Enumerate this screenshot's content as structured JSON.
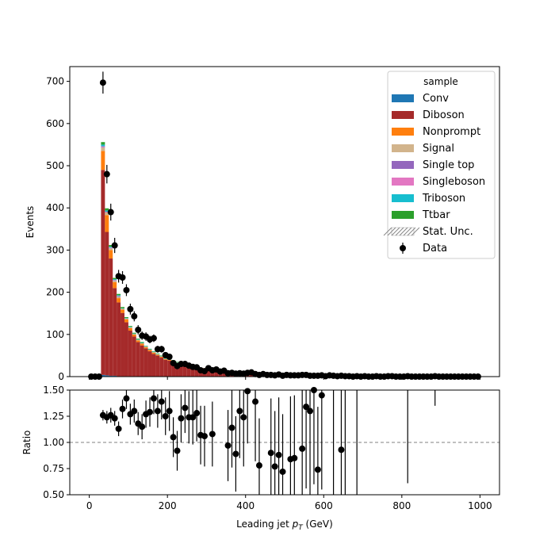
{
  "chart_data": [
    {
      "type": "bar",
      "stacked": true,
      "ylabel": "Events",
      "ylim": [
        0,
        735
      ],
      "xlim": [
        -50,
        1050
      ],
      "yticks": [
        0,
        100,
        200,
        300,
        400,
        500,
        600,
        700
      ],
      "ytick_labels": [
        "0",
        "100",
        "200",
        "300",
        "400",
        "500",
        "600",
        "700"
      ],
      "legend": {
        "title": "sample",
        "placement": "top-right",
        "entries": [
          "Conv",
          "Diboson",
          "Nonprompt",
          "Signal",
          "Single top",
          "Singleboson",
          "Triboson",
          "Ttbar",
          "Stat. Unc.",
          "Data"
        ]
      },
      "bin_edges_start": 30,
      "bin_width": 10,
      "series": [
        {
          "name": "Conv",
          "color": "#1f77b4",
          "values": [
            4,
            3,
            2,
            2,
            1,
            1,
            1,
            1,
            1,
            0,
            0,
            0,
            0,
            0,
            0,
            0
          ]
        },
        {
          "name": "Diboson",
          "color": "#a52a2a",
          "values": [
            486,
            340,
            278,
            208,
            175,
            150,
            128,
            108,
            94,
            82,
            74,
            67,
            60,
            54,
            50,
            45,
            40,
            38,
            35,
            32,
            30,
            28,
            26,
            24,
            22,
            20,
            19,
            18,
            17,
            16,
            15,
            14,
            13,
            12,
            12,
            11,
            10,
            10,
            9,
            9,
            8,
            8,
            7,
            7,
            7,
            6,
            6,
            6,
            5,
            5,
            5,
            5,
            4,
            4,
            4,
            4,
            4,
            3,
            3,
            3,
            3,
            3,
            3,
            3,
            3,
            2,
            2,
            2,
            2,
            2,
            2,
            2,
            2,
            2,
            2,
            2,
            2,
            2,
            2,
            2,
            2,
            2,
            1,
            1,
            1,
            1,
            1,
            1,
            1,
            1,
            1,
            1,
            1,
            1,
            1,
            1,
            1
          ]
        },
        {
          "name": "Nonprompt",
          "color": "#ff7f0e",
          "values": [
            45,
            40,
            20,
            14,
            10,
            8,
            7,
            6,
            5,
            4,
            4,
            3,
            3,
            3,
            2,
            2,
            2,
            2,
            2,
            1,
            1,
            1,
            1,
            1,
            1,
            1,
            1,
            1,
            1,
            1
          ]
        },
        {
          "name": "Signal",
          "color": "#d2b48c",
          "values": [
            8,
            6,
            4,
            3,
            3,
            2,
            2,
            2,
            1,
            1,
            1,
            1,
            1,
            1,
            1,
            1
          ]
        },
        {
          "name": "Single top",
          "color": "#9467bd",
          "values": [
            1,
            1,
            1,
            1,
            1,
            0,
            0,
            0,
            0,
            0
          ]
        },
        {
          "name": "Singleboson",
          "color": "#e377c2",
          "values": [
            2,
            1,
            1,
            1,
            1,
            0,
            0,
            0,
            0,
            0
          ]
        },
        {
          "name": "Triboson",
          "color": "#17becf",
          "values": [
            4,
            3,
            2,
            2,
            2,
            1,
            1,
            1,
            1,
            1,
            1,
            1,
            1,
            1,
            1,
            1,
            1,
            1,
            1,
            1
          ]
        },
        {
          "name": "Ttbar",
          "color": "#2ca02c",
          "values": [
            6,
            5,
            4,
            3,
            3,
            3,
            2,
            2,
            2,
            2,
            2,
            1,
            1,
            1,
            1,
            1,
            1,
            1,
            1,
            1
          ]
        }
      ],
      "data_points": [
        {
          "x": 5,
          "y": 0,
          "err": 0
        },
        {
          "x": 15,
          "y": 0,
          "err": 0
        },
        {
          "x": 25,
          "y": 0,
          "err": 0
        },
        {
          "x": 35,
          "y": 697,
          "err": 26
        },
        {
          "x": 45,
          "y": 480,
          "err": 22
        },
        {
          "x": 55,
          "y": 390,
          "err": 20
        },
        {
          "x": 65,
          "y": 311,
          "err": 18
        },
        {
          "x": 75,
          "y": 238,
          "err": 15
        },
        {
          "x": 85,
          "y": 235,
          "err": 15
        },
        {
          "x": 95,
          "y": 205,
          "err": 14
        },
        {
          "x": 105,
          "y": 160,
          "err": 13
        },
        {
          "x": 115,
          "y": 143,
          "err": 12
        },
        {
          "x": 125,
          "y": 111,
          "err": 11
        },
        {
          "x": 135,
          "y": 97,
          "err": 10
        },
        {
          "x": 145,
          "y": 95,
          "err": 10
        },
        {
          "x": 155,
          "y": 88,
          "err": 9
        },
        {
          "x": 165,
          "y": 91,
          "err": 9
        },
        {
          "x": 175,
          "y": 65,
          "err": 8
        },
        {
          "x": 185,
          "y": 65,
          "err": 8
        },
        {
          "x": 195,
          "y": 51,
          "err": 7
        },
        {
          "x": 205,
          "y": 47,
          "err": 7
        },
        {
          "x": 215,
          "y": 32,
          "err": 6
        },
        {
          "x": 225,
          "y": 25,
          "err": 5
        },
        {
          "x": 235,
          "y": 30,
          "err": 5
        },
        {
          "x": 245,
          "y": 30,
          "err": 5
        },
        {
          "x": 255,
          "y": 26,
          "err": 5
        },
        {
          "x": 265,
          "y": 23,
          "err": 5
        },
        {
          "x": 275,
          "y": 22,
          "err": 5
        },
        {
          "x": 285,
          "y": 15,
          "err": 4
        },
        {
          "x": 295,
          "y": 13,
          "err": 4
        },
        {
          "x": 305,
          "y": 20,
          "err": 4
        },
        {
          "x": 315,
          "y": 15,
          "err": 4
        },
        {
          "x": 325,
          "y": 17,
          "err": 4
        },
        {
          "x": 335,
          "y": 12,
          "err": 3
        },
        {
          "x": 345,
          "y": 14,
          "err": 4
        },
        {
          "x": 355,
          "y": 8,
          "err": 3
        },
        {
          "x": 365,
          "y": 9,
          "err": 3
        },
        {
          "x": 375,
          "y": 7,
          "err": 3
        },
        {
          "x": 385,
          "y": 8,
          "err": 3
        },
        {
          "x": 395,
          "y": 7,
          "err": 3
        },
        {
          "x": 405,
          "y": 9,
          "err": 3
        },
        {
          "x": 415,
          "y": 10,
          "err": 3
        },
        {
          "x": 425,
          "y": 6,
          "err": 2
        },
        {
          "x": 435,
          "y": 4,
          "err": 2
        },
        {
          "x": 445,
          "y": 6,
          "err": 2
        },
        {
          "x": 455,
          "y": 4,
          "err": 2
        },
        {
          "x": 465,
          "y": 4,
          "err": 2
        },
        {
          "x": 475,
          "y": 3,
          "err": 2
        },
        {
          "x": 485,
          "y": 5,
          "err": 2
        },
        {
          "x": 495,
          "y": 2,
          "err": 1
        },
        {
          "x": 505,
          "y": 4,
          "err": 2
        },
        {
          "x": 515,
          "y": 3,
          "err": 2
        },
        {
          "x": 525,
          "y": 3,
          "err": 2
        },
        {
          "x": 535,
          "y": 3,
          "err": 2
        },
        {
          "x": 545,
          "y": 4,
          "err": 2
        },
        {
          "x": 555,
          "y": 4,
          "err": 2
        },
        {
          "x": 565,
          "y": 2,
          "err": 1
        },
        {
          "x": 575,
          "y": 2,
          "err": 1
        },
        {
          "x": 585,
          "y": 2,
          "err": 1
        },
        {
          "x": 595,
          "y": 3,
          "err": 2
        },
        {
          "x": 605,
          "y": 1,
          "err": 1
        },
        {
          "x": 615,
          "y": 3,
          "err": 2
        },
        {
          "x": 625,
          "y": 2,
          "err": 1
        },
        {
          "x": 635,
          "y": 1,
          "err": 1
        },
        {
          "x": 645,
          "y": 2,
          "err": 1
        },
        {
          "x": 655,
          "y": 1,
          "err": 1
        },
        {
          "x": 665,
          "y": 1,
          "err": 1
        },
        {
          "x": 675,
          "y": 0,
          "err": 0
        },
        {
          "x": 685,
          "y": 1,
          "err": 1
        },
        {
          "x": 695,
          "y": 0,
          "err": 0
        },
        {
          "x": 705,
          "y": 1,
          "err": 1
        },
        {
          "x": 715,
          "y": 0,
          "err": 0
        },
        {
          "x": 725,
          "y": 0,
          "err": 0
        },
        {
          "x": 735,
          "y": 1,
          "err": 1
        },
        {
          "x": 745,
          "y": 0,
          "err": 0
        },
        {
          "x": 755,
          "y": 0,
          "err": 0
        },
        {
          "x": 765,
          "y": 1,
          "err": 1
        },
        {
          "x": 775,
          "y": 1,
          "err": 1
        },
        {
          "x": 785,
          "y": 0,
          "err": 0
        },
        {
          "x": 795,
          "y": 0,
          "err": 0
        },
        {
          "x": 805,
          "y": 0,
          "err": 0
        },
        {
          "x": 815,
          "y": 1,
          "err": 1
        },
        {
          "x": 825,
          "y": 0,
          "err": 0
        },
        {
          "x": 835,
          "y": 0,
          "err": 0
        },
        {
          "x": 845,
          "y": 0,
          "err": 0
        },
        {
          "x": 855,
          "y": 0,
          "err": 0
        },
        {
          "x": 865,
          "y": 0,
          "err": 0
        },
        {
          "x": 875,
          "y": 0,
          "err": 0
        },
        {
          "x": 885,
          "y": 1,
          "err": 1
        },
        {
          "x": 895,
          "y": 0,
          "err": 0
        },
        {
          "x": 905,
          "y": 0,
          "err": 0
        },
        {
          "x": 915,
          "y": 0,
          "err": 0
        },
        {
          "x": 925,
          "y": 0,
          "err": 0
        },
        {
          "x": 935,
          "y": 0,
          "err": 0
        },
        {
          "x": 945,
          "y": 0,
          "err": 0
        },
        {
          "x": 955,
          "y": 0,
          "err": 0
        },
        {
          "x": 965,
          "y": 0,
          "err": 0
        },
        {
          "x": 975,
          "y": 0,
          "err": 0
        },
        {
          "x": 985,
          "y": 0,
          "err": 0
        },
        {
          "x": 995,
          "y": 0,
          "err": 0
        }
      ]
    },
    {
      "type": "scatter",
      "ylabel": "Ratio",
      "xlabel": "Leading jet  pT (GeV)",
      "ylim": [
        0.5,
        1.5
      ],
      "xlim": [
        -50,
        1050
      ],
      "yticks": [
        0.5,
        0.75,
        1.0,
        1.25,
        1.5
      ],
      "ytick_labels": [
        "0.50",
        "0.75",
        "1.00",
        "1.25",
        "1.50"
      ],
      "xticks": [
        0,
        200,
        400,
        600,
        800,
        1000
      ],
      "xtick_labels": [
        "0",
        "200",
        "400",
        "600",
        "800",
        "1000"
      ],
      "reference_line": 1.0,
      "points": [
        {
          "x": 35,
          "y": 1.26,
          "err": 0.05
        },
        {
          "x": 45,
          "y": 1.24,
          "err": 0.06
        },
        {
          "x": 55,
          "y": 1.26,
          "err": 0.07
        },
        {
          "x": 65,
          "y": 1.23,
          "err": 0.07
        },
        {
          "x": 75,
          "y": 1.13,
          "err": 0.07
        },
        {
          "x": 85,
          "y": 1.32,
          "err": 0.09
        },
        {
          "x": 95,
          "y": 1.42,
          "err": 0.1
        },
        {
          "x": 105,
          "y": 1.27,
          "err": 0.1
        },
        {
          "x": 115,
          "y": 1.3,
          "err": 0.11
        },
        {
          "x": 125,
          "y": 1.18,
          "err": 0.11
        },
        {
          "x": 135,
          "y": 1.15,
          "err": 0.12
        },
        {
          "x": 145,
          "y": 1.27,
          "err": 0.13
        },
        {
          "x": 155,
          "y": 1.29,
          "err": 0.14
        },
        {
          "x": 165,
          "y": 1.42,
          "err": 0.15
        },
        {
          "x": 175,
          "y": 1.3,
          "err": 0.16
        },
        {
          "x": 185,
          "y": 1.39,
          "err": 0.17
        },
        {
          "x": 195,
          "y": 1.25,
          "err": 0.18
        },
        {
          "x": 205,
          "y": 1.3,
          "err": 0.19
        },
        {
          "x": 215,
          "y": 1.05,
          "err": 0.19
        },
        {
          "x": 225,
          "y": 0.92,
          "err": 0.19
        },
        {
          "x": 235,
          "y": 1.23,
          "err": 0.23
        },
        {
          "x": 245,
          "y": 1.33,
          "err": 0.24
        },
        {
          "x": 255,
          "y": 1.24,
          "err": 0.25
        },
        {
          "x": 265,
          "y": 1.24,
          "err": 0.26
        },
        {
          "x": 275,
          "y": 1.28,
          "err": 0.27
        },
        {
          "x": 285,
          "y": 1.07,
          "err": 0.28
        },
        {
          "x": 295,
          "y": 1.06,
          "err": 0.29
        },
        {
          "x": 315,
          "y": 1.08,
          "err": 0.31
        },
        {
          "x": 355,
          "y": 0.97,
          "err": 0.34
        },
        {
          "x": 365,
          "y": 1.14,
          "err": 0.38
        },
        {
          "x": 375,
          "y": 0.89,
          "err": 0.36
        },
        {
          "x": 385,
          "y": 1.3,
          "err": 0.45
        },
        {
          "x": 395,
          "y": 1.24,
          "err": 0.47
        },
        {
          "x": 405,
          "y": 1.49,
          "err": 0.5
        },
        {
          "x": 425,
          "y": 1.39,
          "err": 0.57
        },
        {
          "x": 435,
          "y": 0.78,
          "err": 0.45
        },
        {
          "x": 465,
          "y": 0.9,
          "err": 0.52
        },
        {
          "x": 475,
          "y": 0.77,
          "err": 0.53
        },
        {
          "x": 485,
          "y": 0.88,
          "err": 0.55
        },
        {
          "x": 495,
          "y": 0.72,
          "err": 0.55
        },
        {
          "x": 515,
          "y": 0.84,
          "err": 0.6
        },
        {
          "x": 525,
          "y": 0.85,
          "err": 0.6
        },
        {
          "x": 545,
          "y": 0.94,
          "err": 0.66
        },
        {
          "x": 555,
          "y": 1.34,
          "err": 0.78
        },
        {
          "x": 565,
          "y": 1.3,
          "err": 0.8
        },
        {
          "x": 575,
          "y": 1.5,
          "err": 0.9
        },
        {
          "x": 585,
          "y": 0.74,
          "err": 0.6
        },
        {
          "x": 595,
          "y": 1.45,
          "err": 0.9
        },
        {
          "x": 645,
          "y": 0.93,
          "err": 0.8
        }
      ],
      "offscale_error_bars": [
        {
          "x": 625,
          "from": 1.5
        },
        {
          "x": 655,
          "from": 1.5
        },
        {
          "x": 685,
          "from": 1.5
        },
        {
          "x": 815,
          "from": 1.5,
          "to": 0.61
        },
        {
          "x": 885,
          "from": 1.5,
          "to": 1.35
        }
      ]
    }
  ]
}
